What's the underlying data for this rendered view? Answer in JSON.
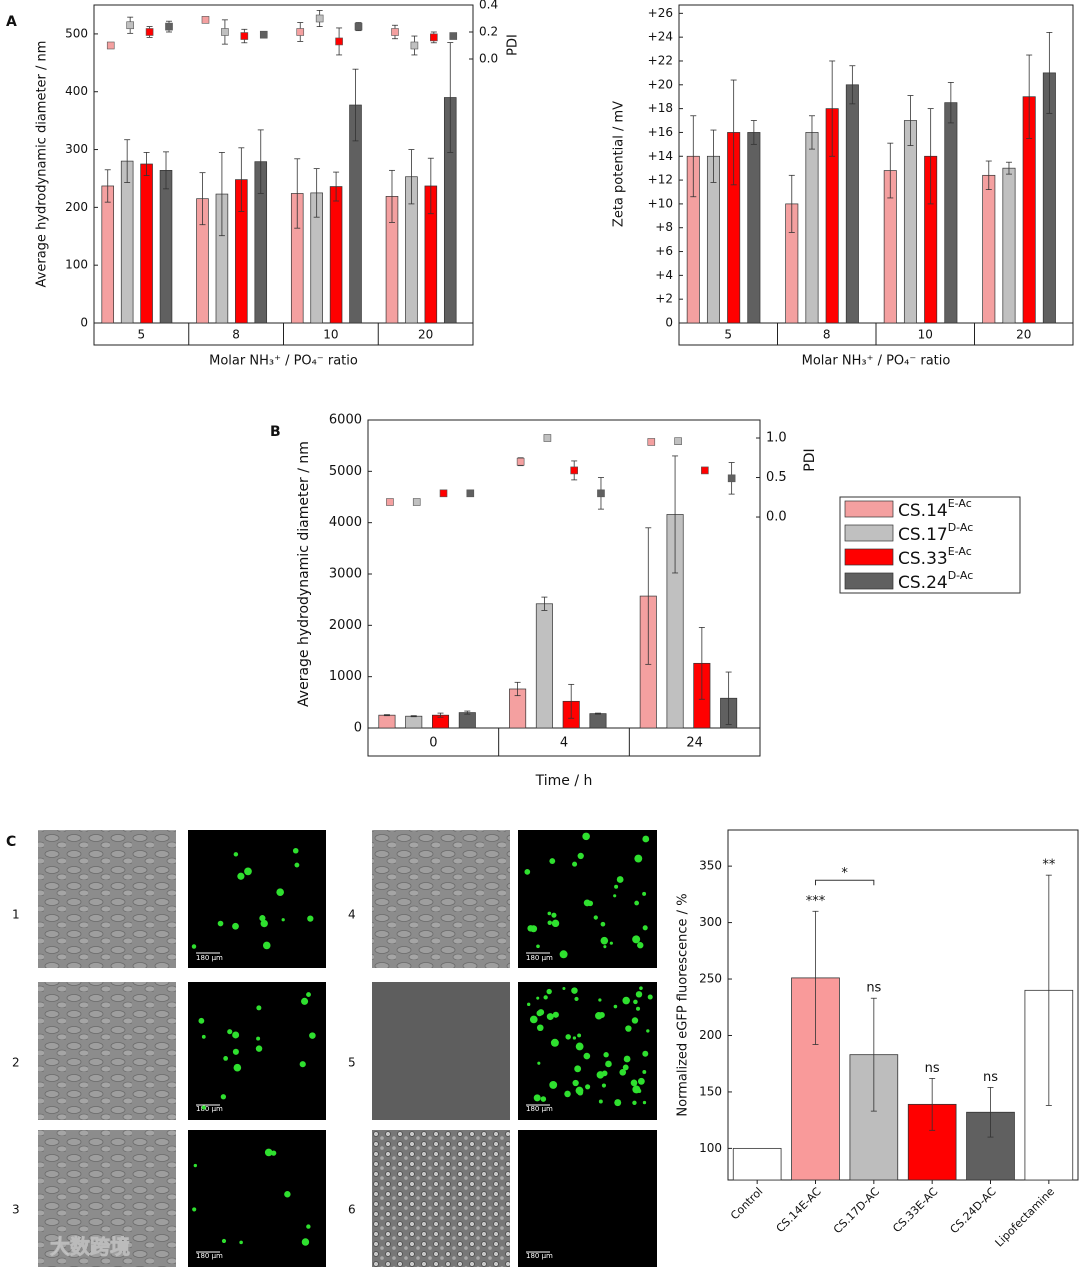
{
  "panel_labels": [
    "A",
    "B",
    "C"
  ],
  "watermark": "大数跨境",
  "image_panels": [
    {
      "label": "1",
      "scale": "180 µm"
    },
    {
      "label": "2",
      "scale": "180 µm"
    },
    {
      "label": "3",
      "scale": "180 µm"
    },
    {
      "label": "4",
      "scale": "180 µm"
    },
    {
      "label": "5",
      "scale": "180 µm"
    },
    {
      "label": "6",
      "scale": "180 µm"
    }
  ],
  "chart_data": [
    {
      "type": "bar",
      "categories": [
        "5",
        "8",
        "10",
        "20"
      ],
      "x_label": "Molar NH₃⁺ / PO₄⁻ ratio",
      "y_label": "Average hydrodynamic diameter / nm",
      "y2_label": "PDI",
      "ylim": [
        0,
        550
      ],
      "yticks": [
        0,
        100,
        200,
        300,
        400,
        500
      ],
      "y2lim": [
        -1.956,
        0.4
      ],
      "y2ticks": [
        {
          "value": 0,
          "label": "0.0"
        },
        0.2,
        0.4
      ],
      "series": [
        {
          "name": "CS.14E-Ac",
          "color": "#f4a0a0",
          "values": [
            237,
            215,
            224,
            219
          ],
          "errors": [
            28,
            45,
            60,
            45
          ]
        },
        {
          "name": "CS.17D-Ac",
          "color": "#c0c0c0",
          "values": [
            280,
            223,
            225,
            253
          ],
          "errors": [
            37,
            72,
            42,
            47
          ]
        },
        {
          "name": "CS.33E-Ac",
          "color": "#ff0000",
          "values": [
            275,
            248,
            236,
            237
          ],
          "errors": [
            20,
            55,
            25,
            48
          ]
        },
        {
          "name": "CS.24D-Ac",
          "color": "#606060",
          "values": [
            264,
            279,
            377,
            390
          ],
          "errors": [
            32,
            55,
            62,
            95
          ]
        },
        {
          "name": "CS.14E-Ac",
          "color": "#f4a0a0",
          "axis": "y2",
          "marker": "square",
          "values": [
            0.1,
            0.29,
            0.2,
            0.2
          ],
          "errors": [
            0.01,
            0.005,
            0.07,
            0.05
          ]
        },
        {
          "name": "CS.17D-Ac",
          "color": "#c0c0c0",
          "axis": "y2",
          "marker": "square",
          "values": [
            0.25,
            0.2,
            0.3,
            0.1
          ],
          "errors": [
            0.06,
            0.09,
            0.06,
            0.07
          ]
        },
        {
          "name": "CS.33E-Ac",
          "color": "#ff0000",
          "axis": "y2",
          "marker": "square",
          "values": [
            0.2,
            0.17,
            0.13,
            0.16
          ],
          "errors": [
            0.04,
            0.05,
            0.1,
            0.04
          ]
        },
        {
          "name": "CS.24D-Ac",
          "color": "#606060",
          "axis": "y2",
          "marker": "square",
          "values": [
            0.24,
            0.18,
            0.24,
            0.17
          ],
          "errors": [
            0.04,
            0.01,
            0.03,
            0.01
          ]
        }
      ]
    },
    {
      "type": "bar",
      "categories": [
        "5",
        "8",
        "10",
        "20"
      ],
      "x_label": "Molar NH₃⁺ / PO₄⁻ ratio",
      "y_label": "Zeta potential / mV",
      "ylim": [
        0,
        26.7
      ],
      "yticks": [
        0,
        {
          "value": 2,
          "label": "+2"
        },
        {
          "value": 4,
          "label": "+4"
        },
        {
          "value": 6,
          "label": "+6"
        },
        {
          "value": 8,
          "label": "+8"
        },
        {
          "value": 10,
          "label": "+10"
        },
        {
          "value": 12,
          "label": "+12"
        },
        {
          "value": 14,
          "label": "+14"
        },
        {
          "value": 16,
          "label": "+16"
        },
        {
          "value": 18,
          "label": "+18"
        },
        {
          "value": 20,
          "label": "+20"
        },
        {
          "value": 22,
          "label": "+22"
        },
        {
          "value": 24,
          "label": "+24"
        },
        {
          "value": 26,
          "label": "+26"
        }
      ],
      "series": [
        {
          "name": "CS.14E-Ac",
          "color": "#f4a0a0",
          "values": [
            14,
            10,
            12.8,
            12.4
          ],
          "errors": [
            3.4,
            2.4,
            2.3,
            1.2
          ]
        },
        {
          "name": "CS.17D-Ac",
          "color": "#c0c0c0",
          "values": [
            14,
            16,
            17,
            13
          ],
          "errors": [
            2.2,
            1.4,
            2.1,
            0.5
          ]
        },
        {
          "name": "CS.33E-Ac",
          "color": "#ff0000",
          "values": [
            16,
            18,
            14,
            19
          ],
          "errors": [
            4.4,
            4,
            4,
            3.5
          ]
        },
        {
          "name": "CS.24D-Ac",
          "color": "#606060",
          "values": [
            16,
            20,
            18.5,
            21
          ],
          "errors": [
            1,
            1.6,
            1.7,
            3.4
          ]
        }
      ]
    },
    {
      "type": "bar",
      "categories": [
        "0",
        "4",
        "24"
      ],
      "x_label": "Time / h",
      "y_label": "Average hydrodynamic diameter / nm",
      "y2_label": "PDI",
      "ylim": [
        0,
        6000
      ],
      "yticks": [
        0,
        1000,
        2000,
        3000,
        4000,
        5000,
        6000
      ],
      "y2lim": [
        -2.67,
        1.228
      ],
      "y2ticks": [
        {
          "value": 0,
          "label": "0.0"
        },
        0.5,
        {
          "value": 1,
          "label": "1.0"
        }
      ],
      "legend": "outside-right",
      "series": [
        {
          "name": "CS.14E-Ac",
          "color": "#f4a0a0",
          "values": [
            250,
            760,
            2570
          ],
          "errors": [
            10,
            130,
            1330
          ]
        },
        {
          "name": "CS.17D-Ac",
          "color": "#c0c0c0",
          "values": [
            230,
            2420,
            4160
          ],
          "errors": [
            10,
            130,
            1140
          ]
        },
        {
          "name": "CS.33E-Ac",
          "color": "#ff0000",
          "values": [
            250,
            520,
            1260
          ],
          "errors": [
            40,
            330,
            700
          ]
        },
        {
          "name": "CS.24D-Ac",
          "color": "#606060",
          "values": [
            300,
            280,
            580
          ],
          "errors": [
            30,
            10,
            510
          ]
        },
        {
          "name": "CS.14E-Ac",
          "color": "#f4a0a0",
          "axis": "y2",
          "marker": "square",
          "values": [
            0.19,
            0.7,
            0.95
          ],
          "errors": [
            0.01,
            0.05,
            0.03
          ]
        },
        {
          "name": "CS.17D-Ac",
          "color": "#c0c0c0",
          "axis": "y2",
          "marker": "square",
          "values": [
            0.19,
            1.0,
            0.96
          ],
          "errors": [
            0.01,
            0.01,
            0.01
          ]
        },
        {
          "name": "CS.33E-Ac",
          "color": "#ff0000",
          "axis": "y2",
          "marker": "square",
          "values": [
            0.3,
            0.59,
            0.59
          ],
          "errors": [
            0.01,
            0.12,
            0.01
          ]
        },
        {
          "name": "CS.24D-Ac",
          "color": "#606060",
          "axis": "y2",
          "marker": "square",
          "values": [
            0.3,
            0.3,
            0.49
          ],
          "errors": [
            0.01,
            0.2,
            0.2
          ]
        }
      ]
    },
    {
      "type": "bar",
      "categories": [
        "Control",
        "CS.14E-AC",
        "CS.17D-AC",
        "CS.33E-AC",
        "CS.24D-AC",
        "Lipofectamine"
      ],
      "y_label": "Normalized eGFP fluorescence / %",
      "values": [
        100,
        251,
        183,
        139,
        132,
        240
      ],
      "errors": [
        0,
        59,
        50,
        23,
        22,
        102
      ],
      "colors": [
        "#ffffff",
        "#f99a9a",
        "#bdbdbd",
        "#ff0000",
        "#606060",
        "#ffffff"
      ],
      "ylim": [
        72,
        382
      ],
      "yticks": [
        100,
        150,
        200,
        250,
        300,
        350
      ],
      "x_labels_rotated": true,
      "annotations": [
        {
          "x": "CS.14E-AC",
          "text": "***"
        },
        {
          "x": "CS.17D-AC",
          "text": "ns"
        },
        {
          "x": "CS.33E-AC",
          "text": "ns"
        },
        {
          "x": "CS.24D-AC",
          "text": "ns"
        },
        {
          "x": "Lipofectamine",
          "text": "**"
        }
      ],
      "brackets": [
        {
          "from": "CS.14E-AC",
          "to": "CS.17D-AC",
          "text": "*"
        }
      ]
    }
  ]
}
